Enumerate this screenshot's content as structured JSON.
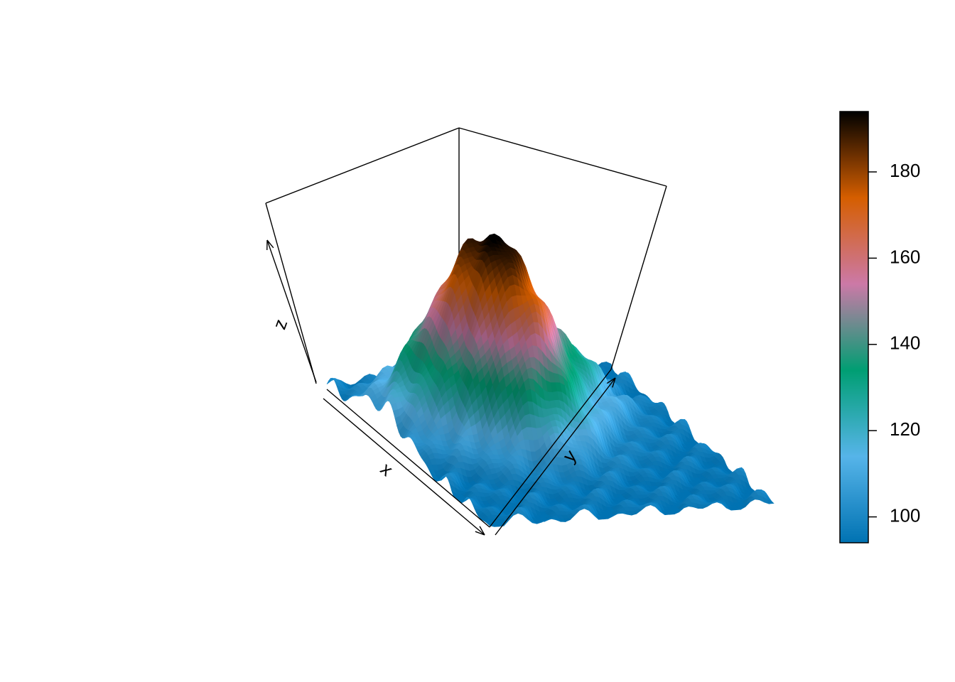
{
  "chart_data": {
    "type": "surface3d",
    "title": "",
    "xlabel": "x",
    "ylabel": "y",
    "zlabel": "z",
    "zlim": [
      94,
      195
    ],
    "grid_rows": 87,
    "grid_cols": 61,
    "colorbar": {
      "ticks": [
        100,
        120,
        140,
        160,
        180
      ],
      "range": [
        94,
        194
      ],
      "colors": [
        "#0072B2",
        "#56B4E9",
        "#009E73",
        "#CC79A7",
        "#D55E00",
        "#000000"
      ],
      "position": "right"
    },
    "surface_model": {
      "base": 96,
      "peaks": [
        {
          "row": 0.35,
          "col": 0.35,
          "height": 92,
          "spread_row": 0.14,
          "spread_col": 0.18
        },
        {
          "row": 0.55,
          "col": 0.4,
          "height": 40,
          "spread_row": 0.1,
          "spread_col": 0.12
        },
        {
          "row": 0.3,
          "col": 0.7,
          "height": 20,
          "spread_row": 0.12,
          "spread_col": 0.1
        }
      ]
    },
    "view": {
      "theta": 40,
      "phi": 40
    }
  }
}
